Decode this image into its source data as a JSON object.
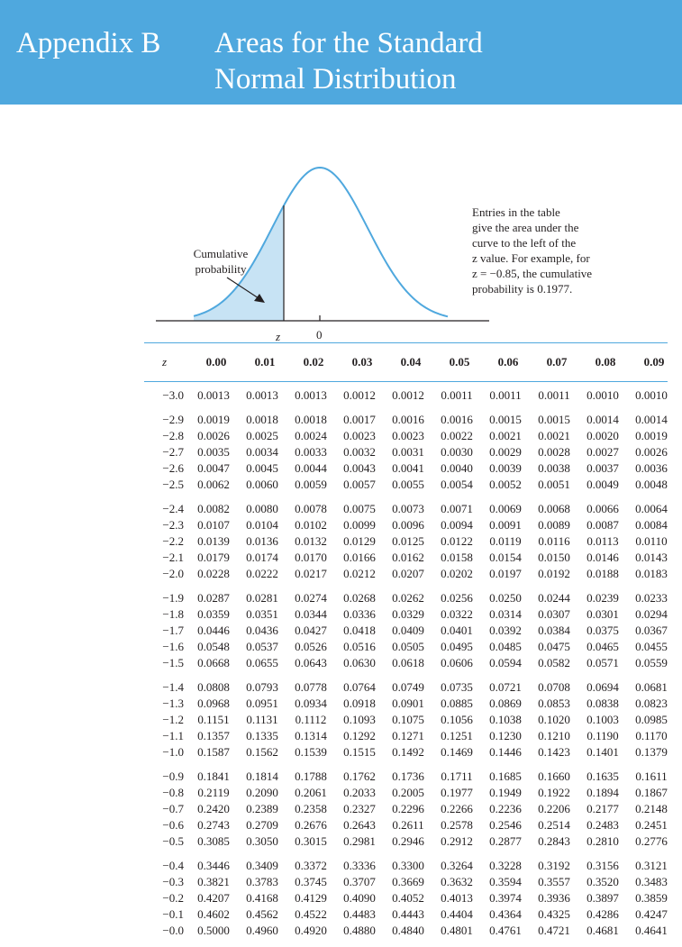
{
  "header": {
    "appendix_label": "Appendix B",
    "title_line1": "Areas for the Standard",
    "title_line2": "Normal Distribution"
  },
  "figure": {
    "cumulative_label_line1": "Cumulative",
    "cumulative_label_line2": "probability",
    "z_label": "z",
    "zero_label": "0",
    "note_lines": [
      "Entries in the table",
      "give the area under the",
      "curve to the left of the",
      "z value. For example, for",
      "z = −0.85, the cumulative",
      "probability is 0.1977."
    ],
    "colors": {
      "curve": "#4fa8de",
      "shade": "#c7e3f4",
      "axis": "#231f20"
    }
  },
  "table": {
    "z_header": "z",
    "columns": [
      "0.00",
      "0.01",
      "0.02",
      "0.03",
      "0.04",
      "0.05",
      "0.06",
      "0.07",
      "0.08",
      "0.09"
    ],
    "groups": [
      [
        {
          "z": "−3.0",
          "v": [
            "0.0013",
            "0.0013",
            "0.0013",
            "0.0012",
            "0.0012",
            "0.0011",
            "0.0011",
            "0.0011",
            "0.0010",
            "0.0010"
          ]
        }
      ],
      [
        {
          "z": "−2.9",
          "v": [
            "0.0019",
            "0.0018",
            "0.0018",
            "0.0017",
            "0.0016",
            "0.0016",
            "0.0015",
            "0.0015",
            "0.0014",
            "0.0014"
          ]
        },
        {
          "z": "−2.8",
          "v": [
            "0.0026",
            "0.0025",
            "0.0024",
            "0.0023",
            "0.0023",
            "0.0022",
            "0.0021",
            "0.0021",
            "0.0020",
            "0.0019"
          ]
        },
        {
          "z": "−2.7",
          "v": [
            "0.0035",
            "0.0034",
            "0.0033",
            "0.0032",
            "0.0031",
            "0.0030",
            "0.0029",
            "0.0028",
            "0.0027",
            "0.0026"
          ]
        },
        {
          "z": "−2.6",
          "v": [
            "0.0047",
            "0.0045",
            "0.0044",
            "0.0043",
            "0.0041",
            "0.0040",
            "0.0039",
            "0.0038",
            "0.0037",
            "0.0036"
          ]
        },
        {
          "z": "−2.5",
          "v": [
            "0.0062",
            "0.0060",
            "0.0059",
            "0.0057",
            "0.0055",
            "0.0054",
            "0.0052",
            "0.0051",
            "0.0049",
            "0.0048"
          ]
        }
      ],
      [
        {
          "z": "−2.4",
          "v": [
            "0.0082",
            "0.0080",
            "0.0078",
            "0.0075",
            "0.0073",
            "0.0071",
            "0.0069",
            "0.0068",
            "0.0066",
            "0.0064"
          ]
        },
        {
          "z": "−2.3",
          "v": [
            "0.0107",
            "0.0104",
            "0.0102",
            "0.0099",
            "0.0096",
            "0.0094",
            "0.0091",
            "0.0089",
            "0.0087",
            "0.0084"
          ]
        },
        {
          "z": "−2.2",
          "v": [
            "0.0139",
            "0.0136",
            "0.0132",
            "0.0129",
            "0.0125",
            "0.0122",
            "0.0119",
            "0.0116",
            "0.0113",
            "0.0110"
          ]
        },
        {
          "z": "−2.1",
          "v": [
            "0.0179",
            "0.0174",
            "0.0170",
            "0.0166",
            "0.0162",
            "0.0158",
            "0.0154",
            "0.0150",
            "0.0146",
            "0.0143"
          ]
        },
        {
          "z": "−2.0",
          "v": [
            "0.0228",
            "0.0222",
            "0.0217",
            "0.0212",
            "0.0207",
            "0.0202",
            "0.0197",
            "0.0192",
            "0.0188",
            "0.0183"
          ]
        }
      ],
      [
        {
          "z": "−1.9",
          "v": [
            "0.0287",
            "0.0281",
            "0.0274",
            "0.0268",
            "0.0262",
            "0.0256",
            "0.0250",
            "0.0244",
            "0.0239",
            "0.0233"
          ]
        },
        {
          "z": "−1.8",
          "v": [
            "0.0359",
            "0.0351",
            "0.0344",
            "0.0336",
            "0.0329",
            "0.0322",
            "0.0314",
            "0.0307",
            "0.0301",
            "0.0294"
          ]
        },
        {
          "z": "−1.7",
          "v": [
            "0.0446",
            "0.0436",
            "0.0427",
            "0.0418",
            "0.0409",
            "0.0401",
            "0.0392",
            "0.0384",
            "0.0375",
            "0.0367"
          ]
        },
        {
          "z": "−1.6",
          "v": [
            "0.0548",
            "0.0537",
            "0.0526",
            "0.0516",
            "0.0505",
            "0.0495",
            "0.0485",
            "0.0475",
            "0.0465",
            "0.0455"
          ]
        },
        {
          "z": "−1.5",
          "v": [
            "0.0668",
            "0.0655",
            "0.0643",
            "0.0630",
            "0.0618",
            "0.0606",
            "0.0594",
            "0.0582",
            "0.0571",
            "0.0559"
          ]
        }
      ],
      [
        {
          "z": "−1.4",
          "v": [
            "0.0808",
            "0.0793",
            "0.0778",
            "0.0764",
            "0.0749",
            "0.0735",
            "0.0721",
            "0.0708",
            "0.0694",
            "0.0681"
          ]
        },
        {
          "z": "−1.3",
          "v": [
            "0.0968",
            "0.0951",
            "0.0934",
            "0.0918",
            "0.0901",
            "0.0885",
            "0.0869",
            "0.0853",
            "0.0838",
            "0.0823"
          ]
        },
        {
          "z": "−1.2",
          "v": [
            "0.1151",
            "0.1131",
            "0.1112",
            "0.1093",
            "0.1075",
            "0.1056",
            "0.1038",
            "0.1020",
            "0.1003",
            "0.0985"
          ]
        },
        {
          "z": "−1.1",
          "v": [
            "0.1357",
            "0.1335",
            "0.1314",
            "0.1292",
            "0.1271",
            "0.1251",
            "0.1230",
            "0.1210",
            "0.1190",
            "0.1170"
          ]
        },
        {
          "z": "−1.0",
          "v": [
            "0.1587",
            "0.1562",
            "0.1539",
            "0.1515",
            "0.1492",
            "0.1469",
            "0.1446",
            "0.1423",
            "0.1401",
            "0.1379"
          ]
        }
      ],
      [
        {
          "z": "−0.9",
          "v": [
            "0.1841",
            "0.1814",
            "0.1788",
            "0.1762",
            "0.1736",
            "0.1711",
            "0.1685",
            "0.1660",
            "0.1635",
            "0.1611"
          ]
        },
        {
          "z": "−0.8",
          "v": [
            "0.2119",
            "0.2090",
            "0.2061",
            "0.2033",
            "0.2005",
            "0.1977",
            "0.1949",
            "0.1922",
            "0.1894",
            "0.1867"
          ]
        },
        {
          "z": "−0.7",
          "v": [
            "0.2420",
            "0.2389",
            "0.2358",
            "0.2327",
            "0.2296",
            "0.2266",
            "0.2236",
            "0.2206",
            "0.2177",
            "0.2148"
          ]
        },
        {
          "z": "−0.6",
          "v": [
            "0.2743",
            "0.2709",
            "0.2676",
            "0.2643",
            "0.2611",
            "0.2578",
            "0.2546",
            "0.2514",
            "0.2483",
            "0.2451"
          ]
        },
        {
          "z": "−0.5",
          "v": [
            "0.3085",
            "0.3050",
            "0.3015",
            "0.2981",
            "0.2946",
            "0.2912",
            "0.2877",
            "0.2843",
            "0.2810",
            "0.2776"
          ]
        }
      ],
      [
        {
          "z": "−0.4",
          "v": [
            "0.3446",
            "0.3409",
            "0.3372",
            "0.3336",
            "0.3300",
            "0.3264",
            "0.3228",
            "0.3192",
            "0.3156",
            "0.3121"
          ]
        },
        {
          "z": "−0.3",
          "v": [
            "0.3821",
            "0.3783",
            "0.3745",
            "0.3707",
            "0.3669",
            "0.3632",
            "0.3594",
            "0.3557",
            "0.3520",
            "0.3483"
          ]
        },
        {
          "z": "−0.2",
          "v": [
            "0.4207",
            "0.4168",
            "0.4129",
            "0.4090",
            "0.4052",
            "0.4013",
            "0.3974",
            "0.3936",
            "0.3897",
            "0.3859"
          ]
        },
        {
          "z": "−0.1",
          "v": [
            "0.4602",
            "0.4562",
            "0.4522",
            "0.4483",
            "0.4443",
            "0.4404",
            "0.4364",
            "0.4325",
            "0.4286",
            "0.4247"
          ]
        },
        {
          "z": "−0.0",
          "v": [
            "0.5000",
            "0.4960",
            "0.4920",
            "0.4880",
            "0.4840",
            "0.4801",
            "0.4761",
            "0.4721",
            "0.4681",
            "0.4641"
          ]
        }
      ]
    ]
  }
}
